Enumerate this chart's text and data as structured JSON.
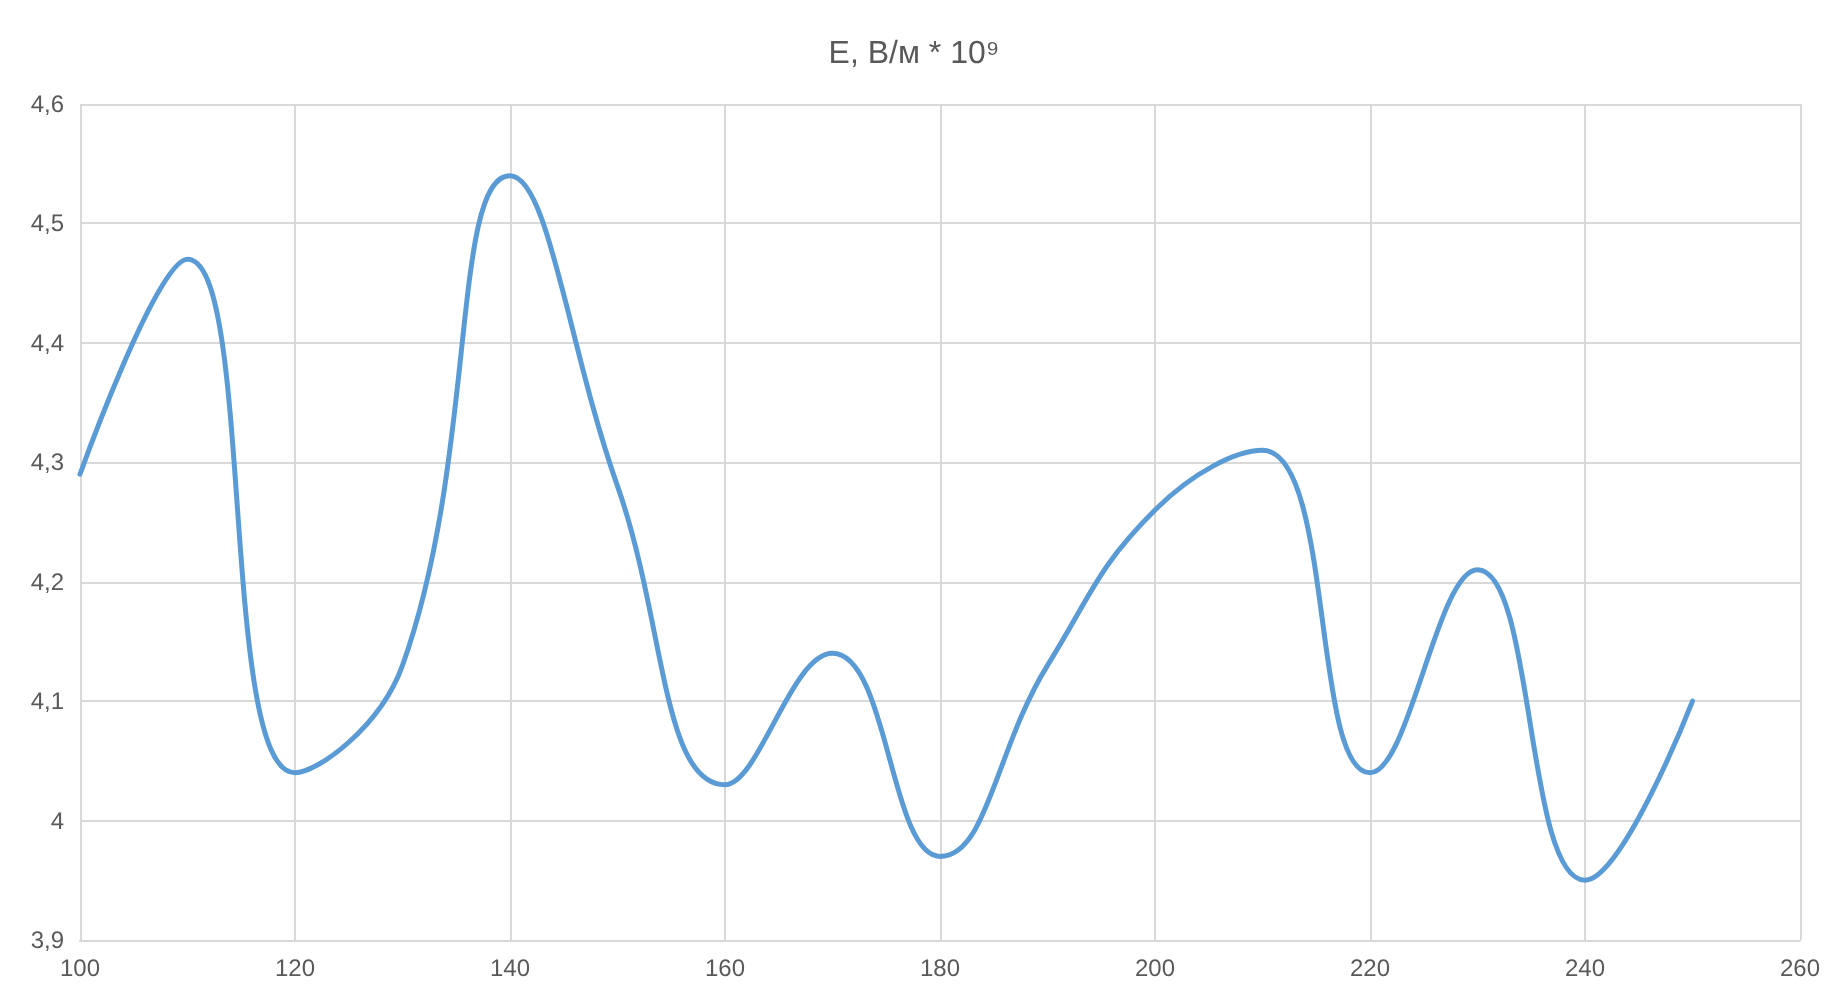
{
  "chart_data": {
    "type": "line",
    "title": "E, В/м * 10⁹",
    "x": [
      100,
      110,
      120,
      130,
      140,
      150,
      160,
      170,
      180,
      190,
      200,
      210,
      220,
      230,
      240,
      250
    ],
    "series": [
      {
        "color": "#5b9bd5",
        "values": [
          4.29,
          4.47,
          4.04,
          4.13,
          4.54,
          4.28,
          4.03,
          4.14,
          3.97,
          4.13,
          4.26,
          4.31,
          4.04,
          4.21,
          3.95,
          4.1
        ]
      }
    ],
    "xlim": [
      100,
      260
    ],
    "xticks": [
      100,
      120,
      140,
      160,
      180,
      200,
      220,
      240,
      260
    ],
    "ylim": [
      3.9,
      4.6
    ],
    "yticks": [
      {
        "value": 3.9,
        "label": "3,9"
      },
      4,
      {
        "value": 4.1,
        "label": "4,1"
      },
      {
        "value": 4.2,
        "label": "4,2"
      },
      {
        "value": 4.3,
        "label": "4,3"
      },
      {
        "value": 4.4,
        "label": "4,4"
      },
      {
        "value": 4.5,
        "label": "4,5"
      },
      {
        "value": 4.6,
        "label": "4,6"
      }
    ],
    "grid": true,
    "marker": "none",
    "line_style": "solid"
  }
}
